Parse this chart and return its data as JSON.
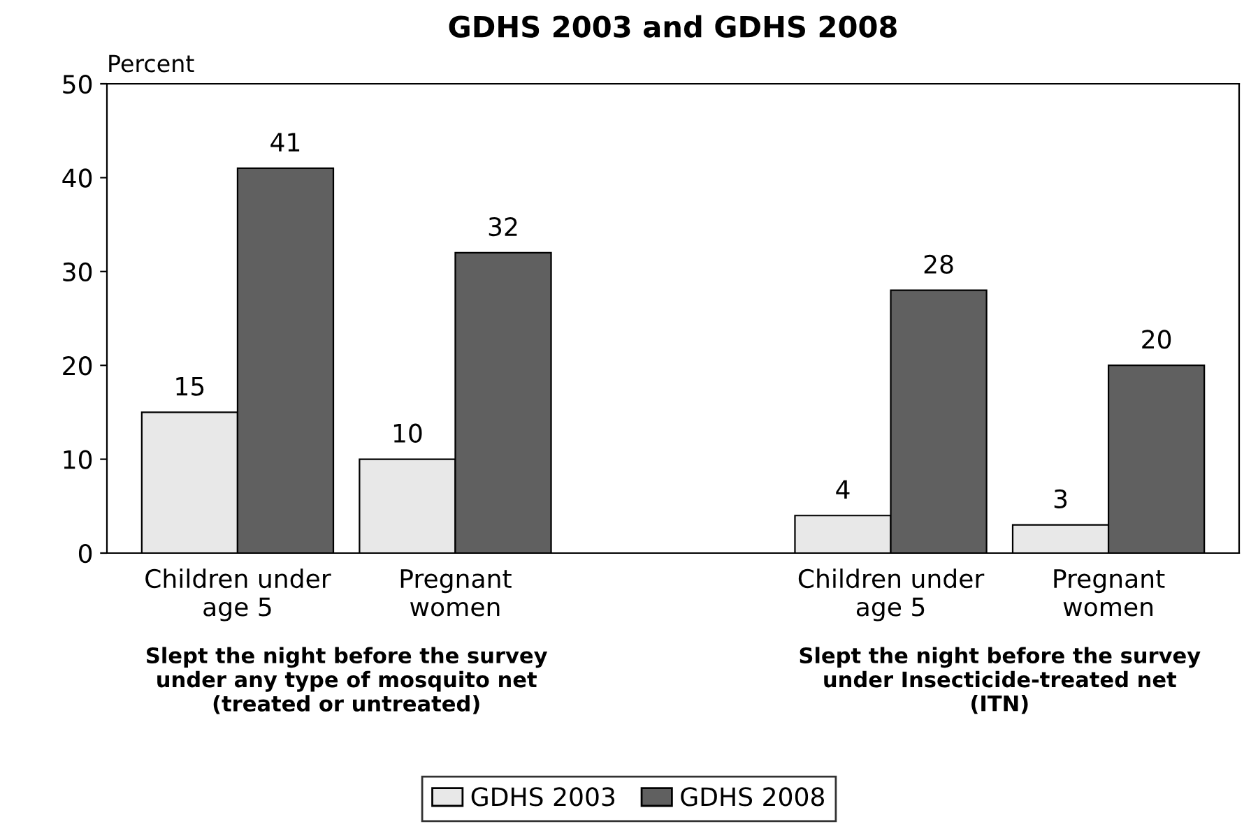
{
  "chart_data": {
    "type": "bar",
    "title": "GDHS 2003 and GDHS 2008",
    "ylabel": "Percent",
    "categories": [
      "Children under\nage 5",
      "Pregnant\nwomen",
      null,
      "Children under\nage 5",
      "Pregnant\nwomen"
    ],
    "series": [
      {
        "name": "GDHS 2003",
        "color": "#e8e8e8",
        "values": [
          15,
          10,
          null,
          4,
          3
        ]
      },
      {
        "name": "GDHS 2008",
        "color": "#606060",
        "values": [
          41,
          32,
          null,
          28,
          20
        ]
      }
    ],
    "ylim": [
      0,
      50
    ],
    "yticks": [
      0,
      10,
      20,
      30,
      40,
      50
    ],
    "data_labels": true,
    "grid": false,
    "legend": "bottom",
    "annotations": [
      "Slept the night before the survey\nunder any type of mosquito net\n(treated or untreated)",
      "Slept the night before the survey\nunder Insecticide-treated net\n(ITN)"
    ]
  }
}
